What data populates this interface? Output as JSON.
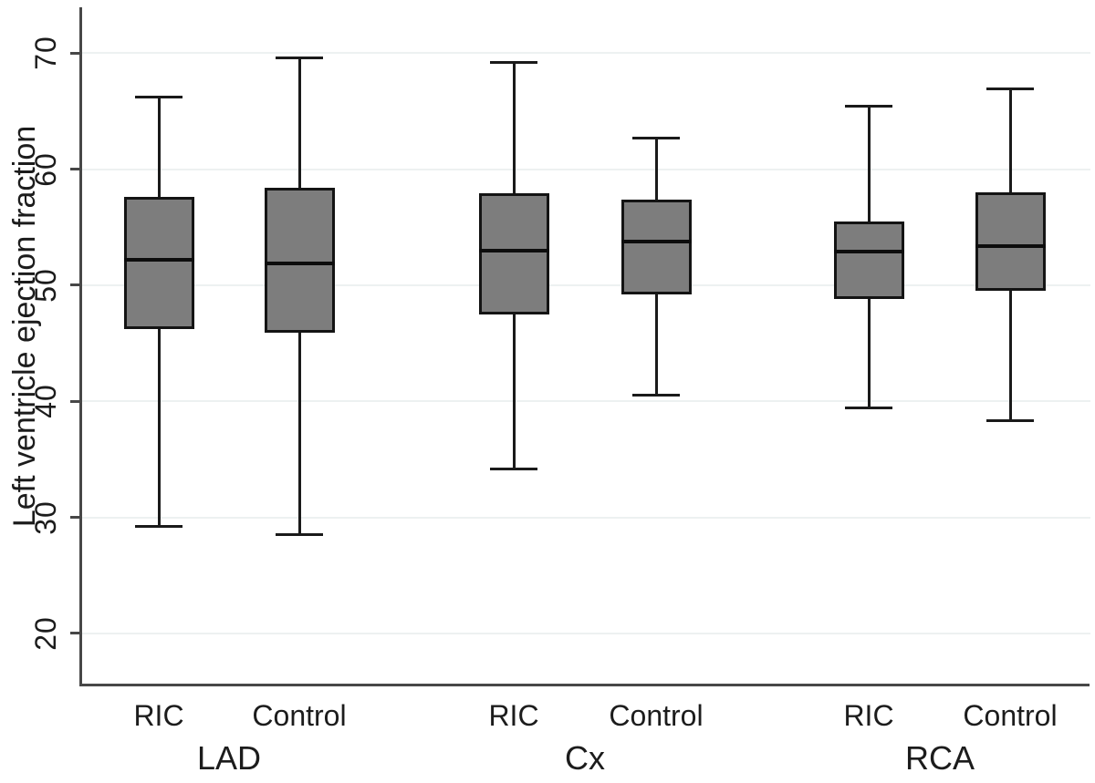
{
  "chart_data": {
    "type": "box",
    "title": "",
    "xlabel": "",
    "ylabel": "Left ventricle ejection fraction",
    "ylim": [
      15.6,
      74
    ],
    "yticks": [
      20,
      30,
      40,
      50,
      60,
      70
    ],
    "grid": true,
    "legend": "none",
    "arm_labels": [
      "RIC",
      "Control"
    ],
    "groups": [
      {
        "label": "LAD",
        "boxes": [
          {
            "arm": "RIC",
            "whisker_low": 29.2,
            "q1": 46.2,
            "median": 52.2,
            "q3": 57.6,
            "whisker_high": 66.2
          },
          {
            "arm": "Control",
            "whisker_low": 28.5,
            "q1": 45.9,
            "median": 51.9,
            "q3": 58.4,
            "whisker_high": 69.6
          }
        ]
      },
      {
        "label": "Cx",
        "boxes": [
          {
            "arm": "RIC",
            "whisker_low": 34.2,
            "q1": 47.5,
            "median": 53.0,
            "q3": 57.9,
            "whisker_high": 69.2
          },
          {
            "arm": "Control",
            "whisker_low": 40.5,
            "q1": 49.2,
            "median": 53.8,
            "q3": 57.4,
            "whisker_high": 62.7
          }
        ]
      },
      {
        "label": "RCA",
        "boxes": [
          {
            "arm": "RIC",
            "whisker_low": 39.4,
            "q1": 48.8,
            "median": 52.9,
            "q3": 55.5,
            "whisker_high": 65.4
          },
          {
            "arm": "Control",
            "whisker_low": 38.3,
            "q1": 49.5,
            "median": 53.4,
            "q3": 58.0,
            "whisker_high": 66.9
          }
        ]
      }
    ],
    "colors": {
      "box_fill": "#7d7d7d",
      "box_border": "#141414",
      "median": "#0d0d0d",
      "grid": "#edf1f1",
      "axis": "#474747",
      "text": "#1c1c1c",
      "background": "#ffffff"
    }
  }
}
